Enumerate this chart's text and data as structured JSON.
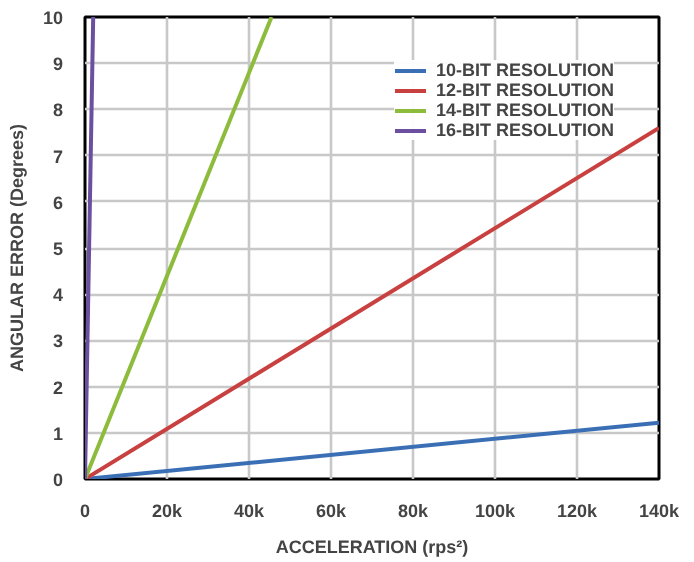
{
  "chart_data": {
    "type": "line",
    "xlabel": "ACCELERATION (rps²)",
    "ylabel": "ANGULAR ERROR (Degrees)",
    "xlim": [
      0,
      140000
    ],
    "ylim": [
      0,
      10
    ],
    "xticks": [
      0,
      {
        "value": 20000,
        "label": "20k"
      },
      {
        "value": 40000,
        "label": "40k"
      },
      {
        "value": 60000,
        "label": "60k"
      },
      {
        "value": 80000,
        "label": "80k"
      },
      {
        "value": 100000,
        "label": "100k"
      },
      {
        "value": 120000,
        "label": "120k"
      },
      {
        "value": 140000,
        "label": "140k"
      }
    ],
    "yticks": [
      0,
      1,
      2,
      3,
      4,
      5,
      6,
      7,
      8,
      9,
      10
    ],
    "grid": true,
    "legend": "top right",
    "series": [
      {
        "name": "10-BIT RESOLUTION",
        "color": "#3a6fb5",
        "x": [
          0,
          140000
        ],
        "values": [
          0,
          1.22
        ]
      },
      {
        "name": "12-BIT RESOLUTION",
        "color": "#c8403f",
        "x": [
          0,
          140000
        ],
        "values": [
          0,
          7.6
        ]
      },
      {
        "name": "14-BIT RESOLUTION",
        "color": "#8dbb3c",
        "x": [
          0,
          45500
        ],
        "values": [
          0,
          10
        ]
      },
      {
        "name": "16-BIT RESOLUTION",
        "color": "#6b4fa0",
        "x": [
          0,
          2000
        ],
        "values": [
          0,
          10
        ]
      }
    ]
  }
}
